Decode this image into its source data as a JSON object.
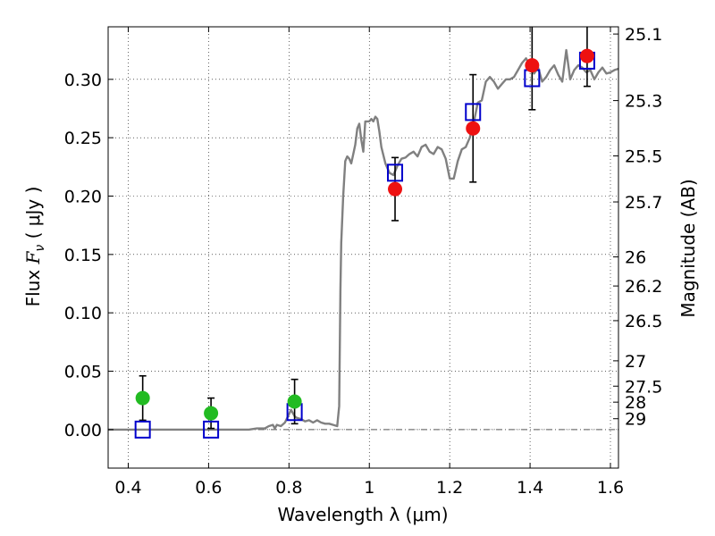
{
  "chart_data": {
    "type": "scatter",
    "title": "",
    "xlabel": "Wavelength  λ (μm)",
    "ylabel": "Flux  F_ν  ( μJy )",
    "ylabel_parts": {
      "prefix": "Flux  ",
      "symbol": "F",
      "subscript": "ν",
      "unit": "  ( μJy )"
    },
    "y2label": "Magnitude (AB)",
    "xlim": [
      0.35,
      1.62
    ],
    "ylim": [
      -0.033,
      0.345
    ],
    "grid": true,
    "x_ticks": [
      {
        "value": 0.4,
        "label": "0.4"
      },
      {
        "value": 0.6,
        "label": "0.6"
      },
      {
        "value": 0.8,
        "label": "0.8"
      },
      {
        "value": 1.0,
        "label": "1"
      },
      {
        "value": 1.2,
        "label": "1.2"
      },
      {
        "value": 1.4,
        "label": "1.4"
      },
      {
        "value": 1.6,
        "label": "1.6"
      }
    ],
    "y_ticks": [
      {
        "value": 0.0,
        "label": "0.00"
      },
      {
        "value": 0.05,
        "label": "0.05"
      },
      {
        "value": 0.1,
        "label": "0.10"
      },
      {
        "value": 0.15,
        "label": "0.15"
      },
      {
        "value": 0.2,
        "label": "0.20"
      },
      {
        "value": 0.25,
        "label": "0.25"
      },
      {
        "value": 0.3,
        "label": "0.30"
      }
    ],
    "y2_ticks": [
      {
        "label": "25.1",
        "flux": 0.3388
      },
      {
        "label": "25.3",
        "flux": 0.2818
      },
      {
        "label": "25.5",
        "flux": 0.2344
      },
      {
        "label": "25.7",
        "flux": 0.195
      },
      {
        "label": "26",
        "flux": 0.1479
      },
      {
        "label": "26.2",
        "flux": 0.123
      },
      {
        "label": "26.5",
        "flux": 0.0933
      },
      {
        "label": "27",
        "flux": 0.0589
      },
      {
        "label": "27.5",
        "flux": 0.0372
      },
      {
        "label": "28",
        "flux": 0.0235
      },
      {
        "label": "29",
        "flux": 0.0093
      }
    ],
    "series": [
      {
        "kind": "line",
        "color": "#808080",
        "x": [
          0.35,
          0.5,
          0.6,
          0.7,
          0.72,
          0.74,
          0.75,
          0.76,
          0.765,
          0.77,
          0.78,
          0.79,
          0.8,
          0.805,
          0.81,
          0.815,
          0.82,
          0.83,
          0.84,
          0.85,
          0.86,
          0.87,
          0.88,
          0.89,
          0.9,
          0.91,
          0.92,
          0.925,
          0.928,
          0.93,
          0.935,
          0.94,
          0.945,
          0.95,
          0.955,
          0.96,
          0.965,
          0.97,
          0.975,
          0.98,
          0.985,
          0.99,
          1.0,
          1.005,
          1.01,
          1.015,
          1.02,
          1.025,
          1.03,
          1.04,
          1.05,
          1.06,
          1.07,
          1.08,
          1.09,
          1.1,
          1.11,
          1.12,
          1.13,
          1.14,
          1.15,
          1.16,
          1.17,
          1.18,
          1.19,
          1.2,
          1.21,
          1.22,
          1.23,
          1.24,
          1.25,
          1.26,
          1.27,
          1.28,
          1.29,
          1.3,
          1.31,
          1.32,
          1.33,
          1.34,
          1.35,
          1.36,
          1.37,
          1.38,
          1.39,
          1.4,
          1.41,
          1.42,
          1.43,
          1.44,
          1.45,
          1.46,
          1.47,
          1.48,
          1.49,
          1.5,
          1.51,
          1.52,
          1.53,
          1.54,
          1.55,
          1.56,
          1.57,
          1.58,
          1.59,
          1.6,
          1.61,
          1.62
        ],
        "y": [
          0.0,
          0.0,
          0.0,
          0.0,
          0.001,
          0.001,
          0.003,
          0.004,
          0.001,
          0.004,
          0.003,
          0.006,
          0.013,
          0.017,
          0.014,
          0.011,
          0.01,
          0.009,
          0.007,
          0.008,
          0.006,
          0.008,
          0.006,
          0.005,
          0.005,
          0.004,
          0.003,
          0.02,
          0.12,
          0.16,
          0.2,
          0.23,
          0.234,
          0.232,
          0.228,
          0.236,
          0.244,
          0.258,
          0.262,
          0.248,
          0.238,
          0.264,
          0.264,
          0.266,
          0.264,
          0.268,
          0.266,
          0.255,
          0.242,
          0.228,
          0.22,
          0.218,
          0.226,
          0.232,
          0.233,
          0.236,
          0.238,
          0.234,
          0.242,
          0.244,
          0.238,
          0.236,
          0.242,
          0.24,
          0.232,
          0.215,
          0.215,
          0.23,
          0.24,
          0.242,
          0.25,
          0.263,
          0.28,
          0.282,
          0.298,
          0.302,
          0.298,
          0.292,
          0.296,
          0.3,
          0.3,
          0.302,
          0.308,
          0.314,
          0.318,
          0.312,
          0.305,
          0.31,
          0.298,
          0.302,
          0.308,
          0.312,
          0.304,
          0.298,
          0.325,
          0.3,
          0.308,
          0.312,
          0.31,
          0.306,
          0.308,
          0.3,
          0.306,
          0.31,
          0.305,
          0.306,
          0.308,
          0.309
        ]
      },
      {
        "kind": "open-squares",
        "color": "#0000cc",
        "x": [
          0.436,
          0.606,
          0.814,
          1.064,
          1.258,
          1.405,
          1.542
        ],
        "y": [
          0.0,
          0.0,
          0.015,
          0.22,
          0.272,
          0.301,
          0.316
        ]
      },
      {
        "kind": "filled-circles",
        "color": "#22bb22",
        "x": [
          0.436,
          0.606,
          0.814
        ],
        "y": [
          0.027,
          0.014,
          0.024
        ],
        "yerr": [
          0.019,
          0.013,
          0.019
        ]
      },
      {
        "kind": "filled-circles",
        "color": "#ee1111",
        "x": [
          1.064,
          1.258,
          1.405,
          1.542
        ],
        "y": [
          0.206,
          0.258,
          0.312,
          0.32
        ],
        "yerr": [
          0.027,
          0.046,
          0.038,
          0.026
        ]
      }
    ]
  }
}
